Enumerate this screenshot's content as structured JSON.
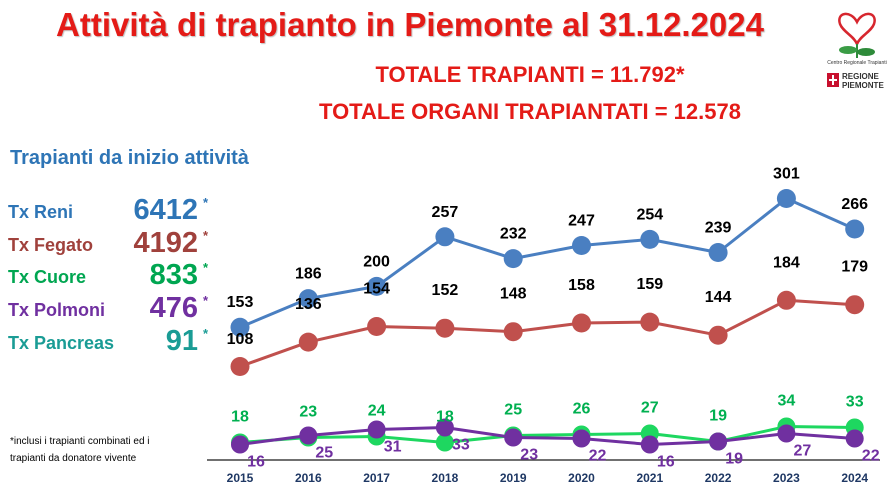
{
  "title": "Attività di trapianto in Piemonte al 31.12.2024",
  "total_transplants": "TOTALE TRAPIANTI = 11.792*",
  "total_organs": "TOTALE ORGANI TRAPIANTATI = 12.578",
  "subtitle": "Trapianti da inizio attività",
  "stats": [
    {
      "label": "Tx Reni",
      "value": "6412",
      "asterisk": "*",
      "label_color": "#2e75b6",
      "value_color": "#2e75b6"
    },
    {
      "label": "Tx Fegato",
      "value": "4192",
      "asterisk": "*",
      "label_color": "#a0413c",
      "value_color": "#a0413c"
    },
    {
      "label": "Tx Cuore",
      "value": "833",
      "asterisk": "*",
      "label_color": "#00a651",
      "value_color": "#00a651"
    },
    {
      "label": "Tx Polmoni",
      "value": "476",
      "asterisk": "*",
      "label_color": "#7030a0",
      "value_color": "#7030a0"
    },
    {
      "label": "Tx Pancreas",
      "value": "91",
      "asterisk": "*",
      "label_color": "#1a9c95",
      "value_color": "#1a9c95"
    }
  ],
  "footnote_line1": "*inclusi i trapianti combinati ed i",
  "footnote_line2": "trapianti   da donatore vivente",
  "logo": {
    "center_text": "Centro Regionale Trapianti",
    "regione_line1": "REGIONE",
    "regione_line2": "PIEMONTE"
  },
  "chart_data": {
    "type": "line",
    "x": [
      "2015",
      "2016",
      "2017",
      "2018",
      "2019",
      "2020",
      "2021",
      "2022",
      "2023",
      "2024"
    ],
    "series": [
      {
        "key": "reni",
        "color": "#4a7fc1",
        "values": [
          153,
          186,
          200,
          257,
          232,
          247,
          254,
          239,
          301,
          266
        ]
      },
      {
        "key": "fegato",
        "color": "#c0504d",
        "values": [
          108,
          136,
          154,
          152,
          148,
          158,
          159,
          144,
          184,
          179
        ]
      },
      {
        "key": "cuore",
        "color": "#1ed760",
        "values": [
          18,
          23,
          24,
          18,
          25,
          26,
          27,
          19,
          34,
          33
        ]
      },
      {
        "key": "polmoni",
        "color": "#7030a0",
        "values": [
          16,
          25,
          31,
          33,
          23,
          22,
          16,
          19,
          27,
          22
        ]
      }
    ],
    "label_colors": {
      "reni": "#000000",
      "fegato": "#000000",
      "cuore": "#00b050",
      "polmoni": "#7030a0"
    }
  }
}
